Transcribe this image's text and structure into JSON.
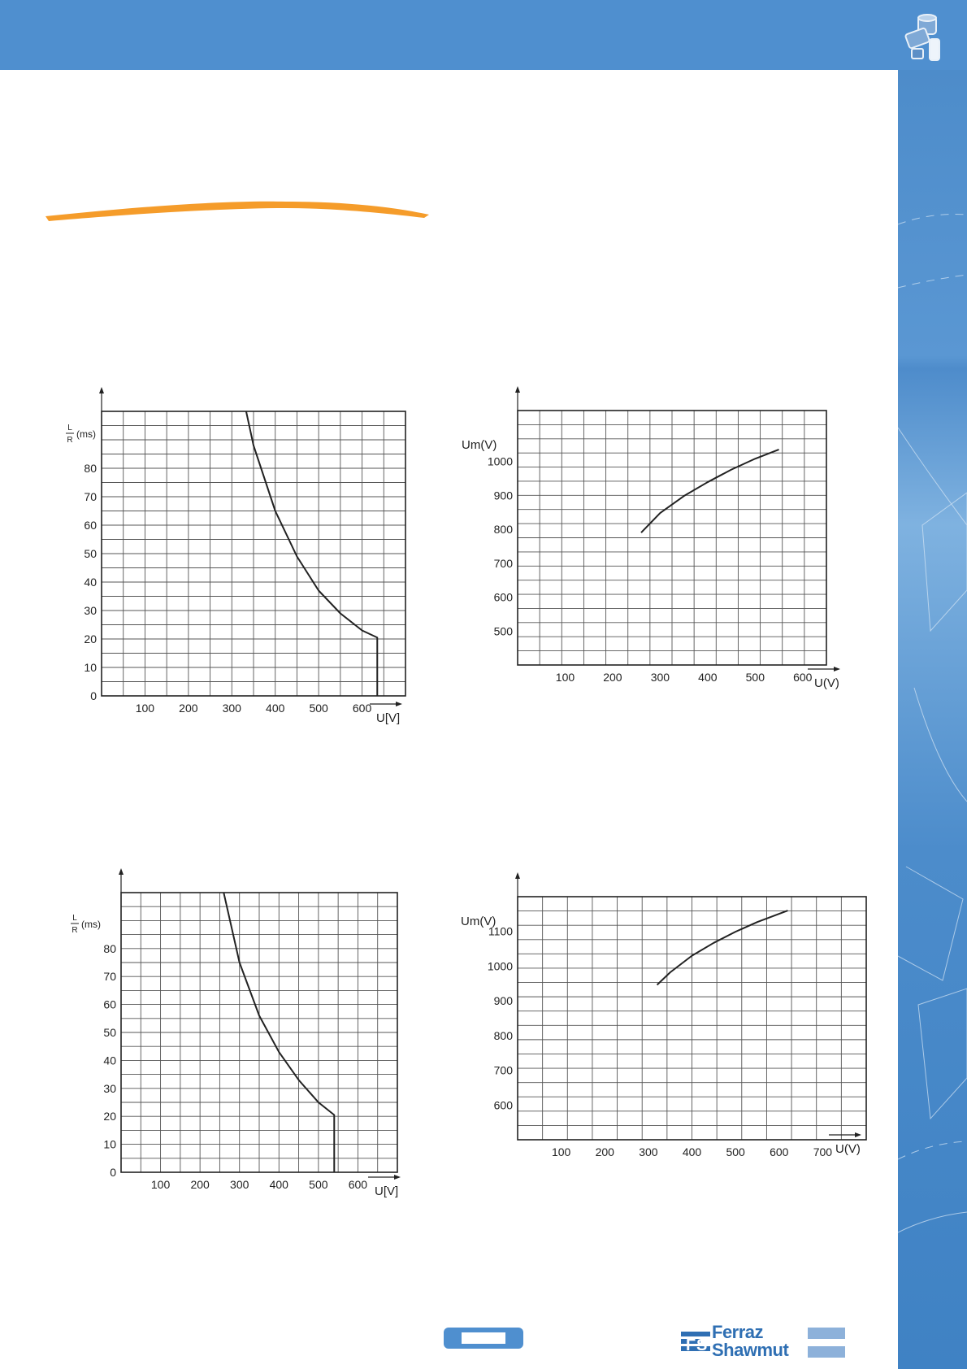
{
  "colors": {
    "header": "#4f8fcf",
    "accent_stroke": "#f59c2a",
    "grid": "#555555",
    "curve": "#222222",
    "brand": "#2f6fb3"
  },
  "header": {
    "icon": "fuse-icon"
  },
  "footer": {
    "logo_line1": "Ferraz",
    "logo_line2": "Shawmut",
    "logo_icon": "fs-logo-icon"
  },
  "chart_data": [
    {
      "type": "line",
      "title": "",
      "xlabel": "U[V]",
      "ylabel_top": "L",
      "ylabel_bottom": "R",
      "ylabel_unit": "(ms)",
      "xlim": [
        0,
        700
      ],
      "ylim": [
        0,
        100
      ],
      "xticks": [
        100,
        200,
        300,
        400,
        500,
        600
      ],
      "yticks": [
        0,
        10,
        20,
        30,
        40,
        50,
        60,
        70,
        80
      ],
      "grid": true,
      "series": [
        {
          "x": [
            333,
            350,
            400,
            450,
            500,
            550,
            600,
            635,
            635
          ],
          "y": [
            100,
            88,
            65,
            49,
            37,
            29,
            23,
            20.5,
            0
          ]
        }
      ]
    },
    {
      "type": "line",
      "title": "",
      "xlabel": "U(V)",
      "ylabel": "Um(V)",
      "xlim": [
        0,
        650
      ],
      "ylim": [
        400,
        1150
      ],
      "xticks": [
        100,
        200,
        300,
        400,
        500,
        600
      ],
      "yticks": [
        500,
        600,
        700,
        800,
        900,
        1000
      ],
      "grid": true,
      "series": [
        {
          "x": [
            260,
            300,
            350,
            400,
            450,
            500,
            550
          ],
          "y": [
            790,
            848,
            898,
            939,
            976,
            1008,
            1035
          ]
        }
      ]
    },
    {
      "type": "line",
      "title": "",
      "xlabel": "U[V]",
      "ylabel_top": "L",
      "ylabel_bottom": "R",
      "ylabel_unit": "(ms)",
      "xlim": [
        0,
        700
      ],
      "ylim": [
        0,
        100
      ],
      "xticks": [
        100,
        200,
        300,
        400,
        500,
        600
      ],
      "yticks": [
        0,
        10,
        20,
        30,
        40,
        50,
        60,
        70,
        80
      ],
      "grid": true,
      "series": [
        {
          "x": [
            260,
            300,
            350,
            400,
            450,
            500,
            540,
            540
          ],
          "y": [
            100,
            75,
            56,
            43,
            33,
            25,
            20.5,
            0
          ]
        }
      ]
    },
    {
      "type": "line",
      "title": "",
      "xlabel": "U(V)",
      "ylabel": "Um(V)",
      "xlim": [
        0,
        800
      ],
      "ylim": [
        500,
        1200
      ],
      "xticks": [
        100,
        200,
        300,
        400,
        500,
        600,
        700
      ],
      "yticks": [
        600,
        700,
        800,
        900,
        1000,
        1100
      ],
      "grid": true,
      "series": [
        {
          "x": [
            320,
            350,
            400,
            450,
            500,
            550,
            620
          ],
          "y": [
            946,
            982,
            1030,
            1067,
            1099,
            1127,
            1160
          ]
        }
      ]
    }
  ]
}
